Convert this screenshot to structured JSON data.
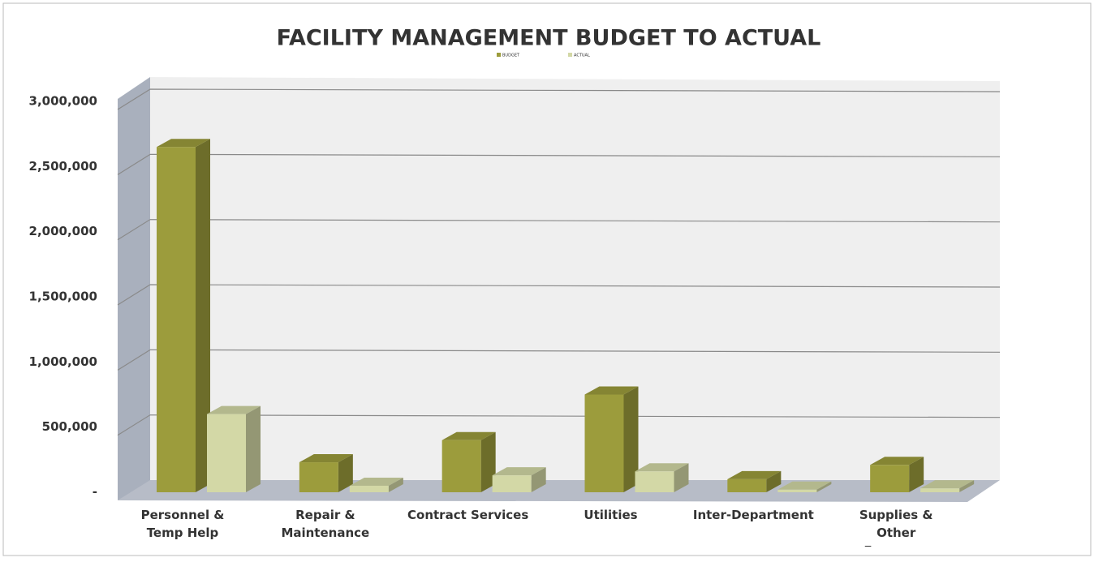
{
  "chart_data": {
    "type": "bar3d",
    "title": "FACILITY MANAGEMENT BUDGET TO ACTUAL",
    "categories": [
      "Personnel & Temp Help",
      "Repair & Maintenance",
      "Contract Services",
      "Utilities",
      "Inter-Department",
      "Supplies & Other Expenses"
    ],
    "series": [
      {
        "name": "BUDGET",
        "color": "#9c9c3c",
        "values": [
          2650000,
          230000,
          400000,
          750000,
          100000,
          210000
        ]
      },
      {
        "name": "ACTUAL",
        "color": "#d3d8a6",
        "values": [
          600000,
          50000,
          130000,
          160000,
          20000,
          30000
        ]
      }
    ],
    "ylim": [
      0,
      3000000
    ],
    "yticks": [
      {
        "value": 0,
        "label": "-"
      },
      {
        "value": 500000,
        "label": "500,000"
      },
      {
        "value": 1000000,
        "label": "1,000,000"
      },
      {
        "value": 1500000,
        "label": "1,500,000"
      },
      {
        "value": 2000000,
        "label": "2,000,000"
      },
      {
        "value": 2500000,
        "label": "2,500,000"
      },
      {
        "value": 3000000,
        "label": "3,000,000"
      }
    ],
    "grid": true,
    "legend": "top"
  }
}
